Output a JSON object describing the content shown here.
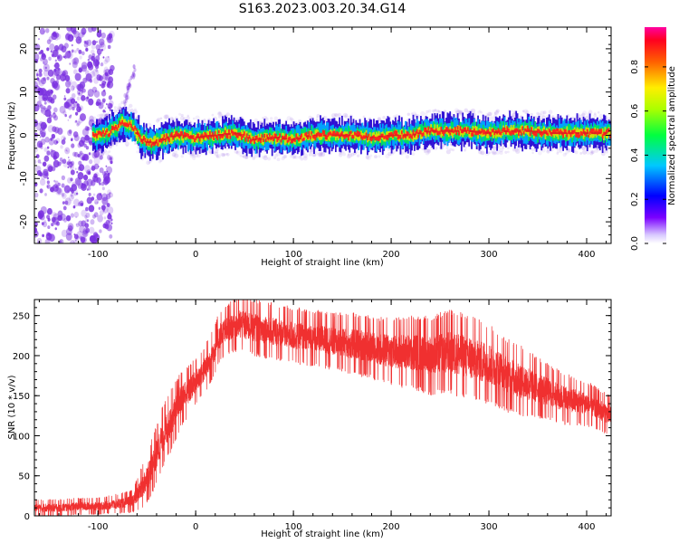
{
  "title": "S163.2023.003.20.34.G14",
  "colors": {
    "snr_line": "#f03030",
    "spectro_trace": "#e02020",
    "noise_purple": "#7a30e0"
  },
  "colorbar": {
    "label": "Normalized spectral amplitude",
    "ticks": [
      "0.0",
      "0.2",
      "0.4",
      "0.6",
      "0.8"
    ],
    "tick_values": [
      0.0,
      0.2,
      0.4,
      0.6,
      0.8
    ],
    "range": [
      0,
      0.98
    ],
    "colormap": "gist_rainbow (magenta-red-yellow-green-cyan-blue-violet-white)"
  },
  "chart_data": [
    {
      "type": "heatmap",
      "title": "S163.2023.003.20.34.G14",
      "xlabel": "Height of straight line (km)",
      "ylabel": "Frequency (Hz)",
      "xlim": [
        -165,
        425
      ],
      "ylim": [
        -25,
        25
      ],
      "x_ticks": [
        -100,
        0,
        100,
        200,
        300,
        400
      ],
      "x_tick_labels": [
        "-100",
        "0",
        "100",
        "200",
        "300",
        "400"
      ],
      "y_ticks": [
        -20,
        -10,
        0,
        10,
        20
      ],
      "y_tick_labels": [
        "-20",
        "-10",
        "0",
        "10",
        "20"
      ],
      "description_series": {
        "name": "dominant frequency ridge",
        "x": [
          -100,
          -90,
          -80,
          -75,
          -65,
          -55,
          -45,
          -35,
          -20,
          0,
          20,
          40,
          60,
          80,
          100,
          120,
          140,
          160,
          180,
          200,
          220,
          240,
          260,
          280,
          300,
          320,
          340,
          360,
          380,
          400,
          425
        ],
        "y": [
          0,
          0.5,
          2,
          3,
          2,
          -1,
          -2,
          -1,
          0,
          -0.5,
          0,
          0.5,
          -1,
          -0.5,
          -1,
          0,
          0,
          0,
          -0.5,
          0,
          0,
          1,
          1,
          1,
          0.5,
          1,
          1,
          0.5,
          0.5,
          0.5,
          0.5
        ]
      },
      "noise_region_x": [
        -165,
        -85
      ]
    },
    {
      "type": "line",
      "xlabel": "Height of straight line (km)",
      "ylabel": "SNR (10 * v/v)",
      "xlim": [
        -165,
        425
      ],
      "ylim": [
        0,
        270
      ],
      "x_ticks": [
        -100,
        0,
        100,
        200,
        300,
        400
      ],
      "x_tick_labels": [
        "-100",
        "0",
        "100",
        "200",
        "300",
        "400"
      ],
      "y_ticks": [
        0,
        50,
        100,
        150,
        200,
        250
      ],
      "y_tick_labels": [
        "0",
        "50",
        "100",
        "150",
        "200",
        "250"
      ],
      "series": [
        {
          "x": [
            -165,
            -140,
            -120,
            -100,
            -80,
            -65,
            -55,
            -45,
            -35,
            -25,
            -15,
            -5,
            5,
            15,
            25,
            35,
            45,
            60,
            80,
            100,
            120,
            140,
            160,
            180,
            200,
            220,
            240,
            260,
            280,
            300,
            320,
            340,
            360,
            380,
            400,
            425
          ],
          "y": [
            10,
            10,
            12,
            12,
            15,
            18,
            35,
            60,
            95,
            120,
            145,
            160,
            175,
            195,
            225,
            235,
            240,
            235,
            230,
            225,
            222,
            218,
            215,
            210,
            205,
            205,
            200,
            205,
            198,
            190,
            175,
            165,
            155,
            145,
            140,
            125
          ],
          "spread": [
            6,
            6,
            6,
            6,
            7,
            8,
            15,
            20,
            22,
            22,
            20,
            18,
            16,
            18,
            18,
            18,
            20,
            20,
            20,
            20,
            20,
            20,
            22,
            22,
            24,
            26,
            28,
            30,
            30,
            28,
            26,
            24,
            20,
            18,
            16,
            14
          ]
        }
      ]
    }
  ]
}
